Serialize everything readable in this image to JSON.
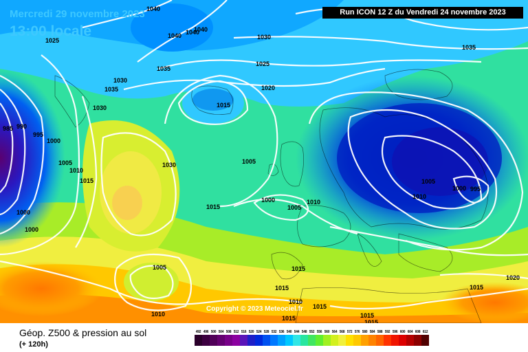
{
  "header": {
    "date": "Mercredi 29 novembre 2023",
    "time": "13:00 locale",
    "run": "Run ICON 12 Z du Vendredi 24 novembre 2023"
  },
  "copyright": "Copyright © 2023 Meteociel.fr",
  "legend": {
    "title": "Géop. Z500 & pression au sol",
    "subtitle": "(+ 120h)",
    "scale": [
      {
        "label": "492",
        "color": "#2a002a"
      },
      {
        "label": "496",
        "color": "#3c0040"
      },
      {
        "label": "500",
        "color": "#500058"
      },
      {
        "label": "504",
        "color": "#640070"
      },
      {
        "label": "508",
        "color": "#780088"
      },
      {
        "label": "512",
        "color": "#8c00a0"
      },
      {
        "label": "516",
        "color": "#5a14b8"
      },
      {
        "label": "520",
        "color": "#1e1ec8"
      },
      {
        "label": "524",
        "color": "#0028dc"
      },
      {
        "label": "528",
        "color": "#0050f0"
      },
      {
        "label": "532",
        "color": "#0078ff"
      },
      {
        "label": "536",
        "color": "#00a0ff"
      },
      {
        "label": "540",
        "color": "#00c8ff"
      },
      {
        "label": "544",
        "color": "#30e6e6"
      },
      {
        "label": "548",
        "color": "#28e6a0"
      },
      {
        "label": "552",
        "color": "#40e660"
      },
      {
        "label": "556",
        "color": "#60ee30"
      },
      {
        "label": "560",
        "color": "#a0f020"
      },
      {
        "label": "564",
        "color": "#d2f01e"
      },
      {
        "label": "568",
        "color": "#f0f03c"
      },
      {
        "label": "572",
        "color": "#ffe000"
      },
      {
        "label": "576",
        "color": "#ffc800"
      },
      {
        "label": "580",
        "color": "#ffa000"
      },
      {
        "label": "584",
        "color": "#ff8200"
      },
      {
        "label": "588",
        "color": "#ff6400"
      },
      {
        "label": "592",
        "color": "#ff3200"
      },
      {
        "label": "596",
        "color": "#f01400"
      },
      {
        "label": "600",
        "color": "#dc0000"
      },
      {
        "label": "604",
        "color": "#b40000"
      },
      {
        "label": "608",
        "color": "#8c0000"
      },
      {
        "label": "612",
        "color": "#500000"
      }
    ]
  },
  "isobar_labels": [
    "1040",
    "1025",
    "1040",
    "1040",
    "1040",
    "1030",
    "1035",
    "1025",
    "1035",
    "1030",
    "1035",
    "1020",
    "1030",
    "1015",
    "985",
    "990",
    "995",
    "1000",
    "1005",
    "1010",
    "1015",
    "1030",
    "1005",
    "1000",
    "1000",
    "1015",
    "1000",
    "1005",
    "1010",
    "1005",
    "1000",
    "995",
    "1010",
    "1005",
    "1015",
    "1010",
    "1015",
    "1010",
    "1015",
    "1020",
    "1015",
    "1015",
    "1015",
    "1015"
  ]
}
